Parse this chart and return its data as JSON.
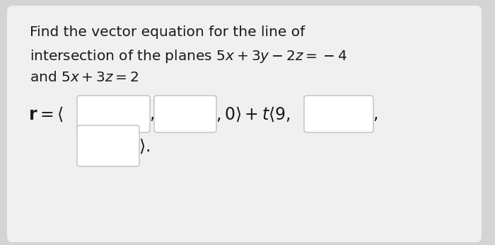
{
  "outer_bg": "#d4d4d4",
  "card_bg": "#f0f0f0",
  "text_color": "#1a1a1a",
  "box_fill": "#ffffff",
  "box_edge": "#c0c0c0",
  "font_size_title": 14.5,
  "font_size_eq": 17,
  "title_line1": "Find the vector equation for the line of",
  "title_line2": "intersection of the planes $5x + 3y - 2z = -4$",
  "title_line3": "and $5x + 3z = 2$"
}
